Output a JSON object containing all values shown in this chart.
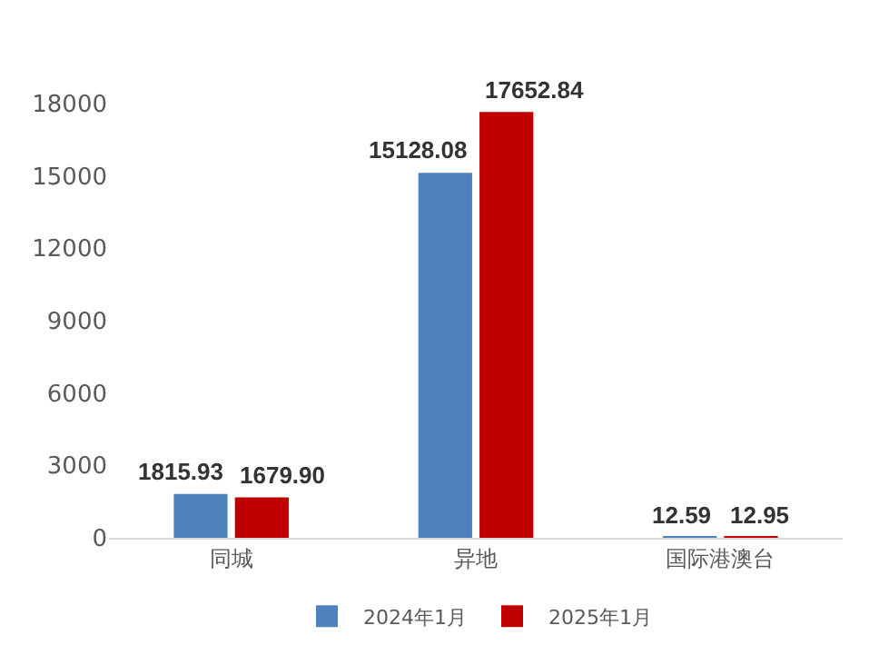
{
  "chart_data": {
    "type": "bar",
    "categories": [
      "同城",
      "异地",
      "国际港澳台"
    ],
    "series": [
      {
        "name": "2024年1月",
        "color": "#4f81bd",
        "values": [
          1815.93,
          15128.08,
          12.59
        ],
        "value_labels": [
          "1815.93",
          "15128.08",
          "12.59"
        ]
      },
      {
        "name": "2025年1月",
        "color": "#c00000",
        "values": [
          1679.9,
          17652.84,
          12.95
        ],
        "value_labels": [
          "1679.90",
          "17652.84",
          "12.95"
        ]
      }
    ],
    "ylim": [
      0,
      18000
    ],
    "yticks": [
      0,
      3000,
      6000,
      9000,
      12000,
      15000,
      18000
    ],
    "grid": false,
    "legend": "bottom"
  }
}
